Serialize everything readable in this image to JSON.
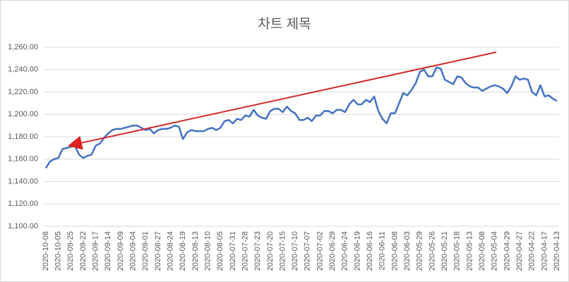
{
  "chart_data": {
    "type": "line",
    "title": "차트 제목",
    "color": "#4472c4",
    "categories": [
      "2020-10-08",
      null,
      null,
      "2020-10-05",
      null,
      null,
      "2020-09-25",
      null,
      null,
      "2020-09-22",
      null,
      null,
      "2020-09-17",
      null,
      null,
      "2020-09-14",
      null,
      null,
      "2020-09-09",
      null,
      null,
      "2020-09-04",
      null,
      null,
      "2020-09-01",
      null,
      null,
      "2020-08-27",
      null,
      null,
      "2020-08-24",
      null,
      null,
      "2020-08-19",
      null,
      null,
      "2020-08-13",
      null,
      null,
      "2020-08-10",
      null,
      null,
      "2020-08-05",
      null,
      null,
      "2020-07-31",
      null,
      null,
      "2020-07-28",
      null,
      null,
      "2020-07-23",
      null,
      null,
      "2020-07-20",
      null,
      null,
      "2020-07-15",
      null,
      null,
      "2020-07-10",
      null,
      null,
      "2020-07-07",
      null,
      null,
      "2020-07-02",
      null,
      null,
      "2020-06-29",
      null,
      null,
      "2020-06-24",
      null,
      null,
      "2020-06-19",
      null,
      null,
      "2020-06-16",
      null,
      null,
      "2020-06-11",
      null,
      null,
      "2020-06-08",
      null,
      null,
      "2020-06-03",
      null,
      null,
      "2020-05-29",
      null,
      null,
      "2020-05-26",
      null,
      null,
      "2020-05-21",
      null,
      null,
      "2020-05-18",
      null,
      null,
      "2020-05-13",
      null,
      null,
      "2020-05-08",
      null,
      null,
      "2020-05-04",
      null,
      null,
      "2020-04-29",
      null,
      null,
      "2020-04-27",
      null,
      null,
      "2020-04-22",
      null,
      null,
      "2020-04-17",
      null,
      null,
      "2020-04-13"
    ],
    "values": [
      1152,
      1158,
      1160,
      1161,
      1169,
      1170,
      1171,
      1172,
      1164,
      1161,
      1163,
      1164,
      1172,
      1174,
      1179,
      1183,
      1186,
      1187,
      1187,
      1188,
      1189,
      1190,
      1190,
      1188,
      1186,
      1187,
      1183,
      1186,
      1187,
      1187,
      1188,
      1190,
      1189,
      1178,
      1184,
      1186,
      1185,
      1185,
      1185,
      1187,
      1188,
      1186,
      1188,
      1194,
      1195,
      1192,
      1196,
      1195,
      1199,
      1198,
      1204,
      1199,
      1197,
      1196,
      1203,
      1205,
      1205,
      1202,
      1207,
      1203,
      1201,
      1195,
      1195,
      1197,
      1194,
      1199,
      1199,
      1203,
      1203,
      1201,
      1204,
      1204,
      1202,
      1209,
      1213,
      1209,
      1209,
      1213,
      1211,
      1216,
      1203,
      1196,
      1192,
      1201,
      1201,
      1210,
      1219,
      1217,
      1222,
      1228,
      1238,
      1240,
      1234,
      1234,
      1242,
      1241,
      1231,
      1229,
      1227,
      1234,
      1233,
      1228,
      1225,
      1224,
      1224,
      1221,
      1223,
      1225,
      1226,
      1225,
      1223,
      1219,
      1225,
      1234,
      1231,
      1232,
      1231,
      1220,
      1217,
      1226,
      1216,
      1217,
      1214,
      1212
    ],
    "ylim": [
      1100,
      1260
    ],
    "yticks": [
      {
        "value": 1100,
        "label": "1,100.00"
      },
      {
        "value": 1120,
        "label": "1,120.00"
      },
      {
        "value": 1140,
        "label": "1,140.00"
      },
      {
        "value": 1160,
        "label": "1,160.00"
      },
      {
        "value": 1180,
        "label": "1,180.00"
      },
      {
        "value": 1200,
        "label": "1,200.00"
      },
      {
        "value": 1220,
        "label": "1,220.00"
      },
      {
        "value": 1240,
        "label": "1,240.00"
      },
      {
        "value": 1260,
        "label": "1,260.00"
      }
    ],
    "grid": true
  }
}
